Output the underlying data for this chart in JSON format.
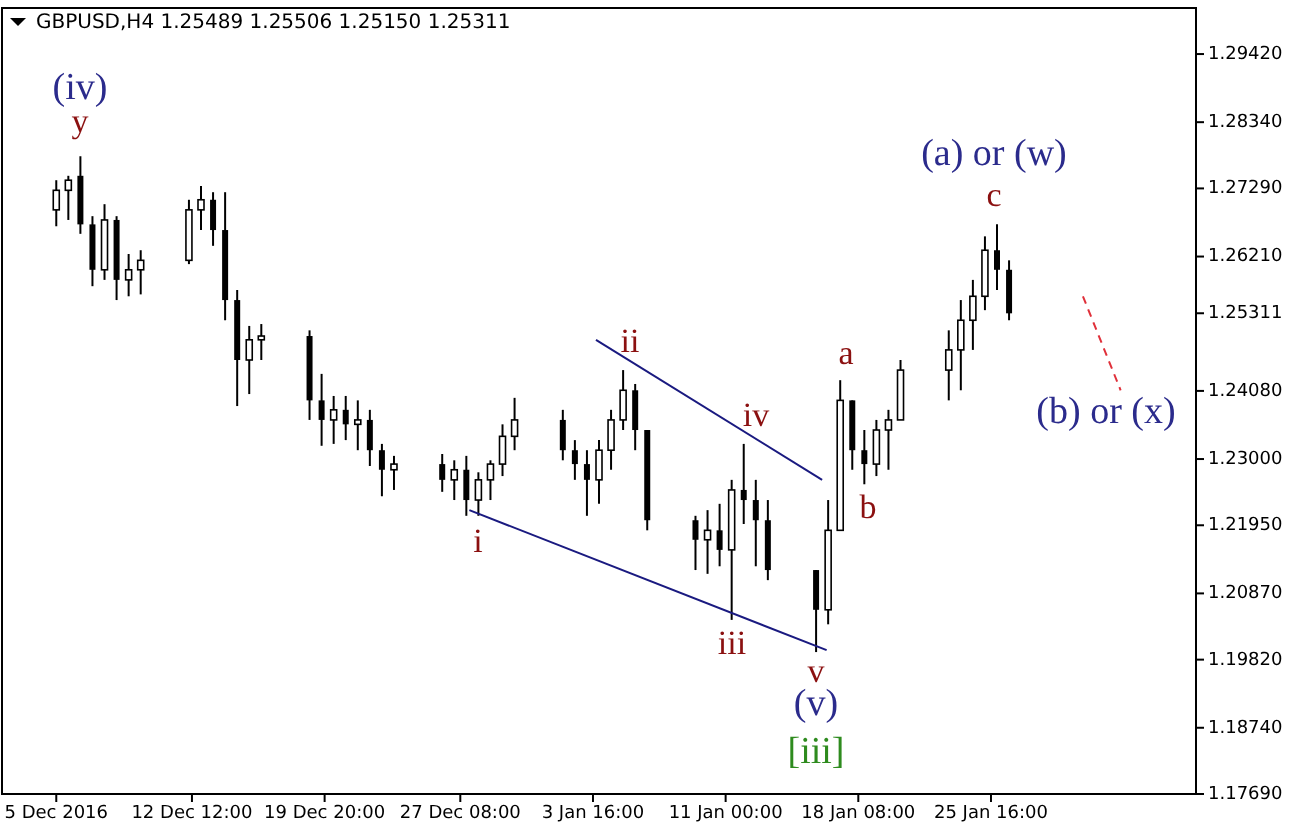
{
  "chart_data": {
    "type": "candlestick",
    "title": "GBPUSD,H4  1.25489 1.25506 1.25150 1.25311",
    "color": "#000000",
    "x": [
      "2016-12-05T00:00",
      "2016-12-05T16:00",
      "2016-12-06T08:00",
      "2016-12-07T00:00",
      "2016-12-07T16:00",
      "2016-12-08T08:00",
      "2016-12-09T00:00",
      "2016-12-09T16:00",
      "2016-12-12T08:00",
      "2016-12-13T00:00",
      "2016-12-13T16:00",
      "2016-12-14T08:00",
      "2016-12-15T00:00",
      "2016-12-15T16:00",
      "2016-12-16T08:00",
      "2016-12-19T00:00",
      "2016-12-19T16:00",
      "2016-12-20T08:00",
      "2016-12-21T00:00",
      "2016-12-21T16:00",
      "2016-12-22T08:00",
      "2016-12-23T00:00",
      "2016-12-23T16:00",
      "2016-12-26T08:00",
      "2016-12-27T00:00",
      "2016-12-27T16:00",
      "2016-12-28T08:00",
      "2016-12-29T00:00",
      "2016-12-29T16:00",
      "2016-12-30T08:00",
      "2017-01-02T00:00",
      "2017-01-02T16:00",
      "2017-01-03T08:00",
      "2017-01-04T00:00",
      "2017-01-04T16:00",
      "2017-01-05T08:00",
      "2017-01-06T00:00",
      "2017-01-06T16:00",
      "2017-01-09T08:00",
      "2017-01-10T00:00",
      "2017-01-10T16:00",
      "2017-01-11T08:00",
      "2017-01-12T00:00",
      "2017-01-12T16:00",
      "2017-01-13T08:00",
      "2017-01-16T00:00",
      "2017-01-16T16:00",
      "2017-01-17T08:00",
      "2017-01-18T00:00",
      "2017-01-18T16:00",
      "2017-01-19T08:00",
      "2017-01-20T00:00",
      "2017-01-20T16:00",
      "2017-01-23T08:00",
      "2017-01-24T00:00",
      "2017-01-24T16:00",
      "2017-01-25T08:00",
      "2017-01-26T00:00",
      "2017-01-26T16:00"
    ],
    "ohlc": [
      [
        1.2695,
        1.2742,
        1.2669,
        1.2726
      ],
      [
        1.2726,
        1.2749,
        1.2679,
        1.2742
      ],
      [
        1.2749,
        1.278,
        1.2657,
        1.2672
      ],
      [
        1.2672,
        1.2685,
        1.2574,
        1.26
      ],
      [
        1.26,
        1.2704,
        1.2584,
        1.2679
      ],
      [
        1.2679,
        1.2685,
        1.2552,
        1.2584
      ],
      [
        1.2584,
        1.2625,
        1.2558,
        1.26
      ],
      [
        1.26,
        1.2631,
        1.2561,
        1.2615
      ],
      [
        1.2615,
        1.2711,
        1.2609,
        1.2695
      ],
      [
        1.2695,
        1.2733,
        1.2663,
        1.2711
      ],
      [
        1.2711,
        1.2723,
        1.2638,
        1.2663
      ],
      [
        1.2663,
        1.2723,
        1.252,
        1.2552
      ],
      [
        1.2552,
        1.2568,
        1.2384,
        1.2457
      ],
      [
        1.2457,
        1.2511,
        1.2403,
        1.2489
      ],
      [
        1.2489,
        1.2514,
        1.2457,
        1.2495
      ],
      [
        1.2495,
        1.2504,
        1.2362,
        1.2393
      ],
      [
        1.2393,
        1.2435,
        1.2321,
        1.2362
      ],
      [
        1.2362,
        1.24,
        1.2324,
        1.2378
      ],
      [
        1.2378,
        1.24,
        1.233,
        1.2355
      ],
      [
        1.2355,
        1.2393,
        1.2314,
        1.2362
      ],
      [
        1.2362,
        1.2378,
        1.2289,
        1.2314
      ],
      [
        1.2314,
        1.2324,
        1.2241,
        1.2283
      ],
      [
        1.2283,
        1.2305,
        1.2251,
        1.2292
      ],
      [
        1.2292,
        1.2308,
        1.2248,
        1.2267
      ],
      [
        1.2267,
        1.2298,
        1.2235,
        1.2283
      ],
      [
        1.2283,
        1.2305,
        1.221,
        1.2235
      ],
      [
        1.2235,
        1.2279,
        1.221,
        1.2267
      ],
      [
        1.2267,
        1.2298,
        1.2235,
        1.2292
      ],
      [
        1.2292,
        1.2355,
        1.2273,
        1.2336
      ],
      [
        1.2336,
        1.2397,
        1.2314,
        1.2362
      ],
      [
        1.2362,
        1.2378,
        1.2298,
        1.2314
      ],
      [
        1.2314,
        1.233,
        1.2267,
        1.2292
      ],
      [
        1.2292,
        1.2314,
        1.221,
        1.2267
      ],
      [
        1.2267,
        1.233,
        1.2229,
        1.2314
      ],
      [
        1.2314,
        1.2378,
        1.2283,
        1.2362
      ],
      [
        1.2362,
        1.2441,
        1.2346,
        1.2409
      ],
      [
        1.2409,
        1.2419,
        1.2314,
        1.2346
      ],
      [
        1.2346,
        1.2346,
        1.2187,
        1.2203
      ],
      [
        1.2203,
        1.221,
        1.2124,
        1.2172
      ],
      [
        1.2172,
        1.2219,
        1.2118,
        1.2187
      ],
      [
        1.2187,
        1.2229,
        1.213,
        1.2156
      ],
      [
        1.2156,
        1.2267,
        1.2045,
        1.2251
      ],
      [
        1.2251,
        1.2324,
        1.2197,
        1.2235
      ],
      [
        1.2235,
        1.2267,
        1.213,
        1.2203
      ],
      [
        1.2203,
        1.2235,
        1.2108,
        1.2124
      ],
      [
        1.2124,
        1.2124,
        1.1994,
        1.2061
      ],
      [
        1.2061,
        1.2235,
        1.2038,
        1.2187
      ],
      [
        1.2187,
        1.2425,
        1.2187,
        1.2393
      ],
      [
        1.2393,
        1.2393,
        1.2283,
        1.2314
      ],
      [
        1.2314,
        1.2346,
        1.226,
        1.2292
      ],
      [
        1.2292,
        1.2362,
        1.2273,
        1.2346
      ],
      [
        1.2346,
        1.2378,
        1.2283,
        1.2362
      ],
      [
        1.2362,
        1.2457,
        1.2362,
        1.2441
      ],
      [
        1.2441,
        1.2504,
        1.2393,
        1.2473
      ],
      [
        1.2473,
        1.2552,
        1.2409,
        1.252
      ],
      [
        1.252,
        1.2584,
        1.2473,
        1.2558
      ],
      [
        1.2558,
        1.2653,
        1.2536,
        1.2631
      ],
      [
        1.2631,
        1.2672,
        1.2568,
        1.26
      ],
      [
        1.26,
        1.2615,
        1.252,
        1.2531
      ]
    ],
    "series": [
      {
        "type": "line",
        "color": "#1a1a80",
        "x": [
          "2017-01-03T20:00",
          "2017-01-16T08:00"
        ],
        "values": [
          1.2489,
          1.2267
        ]
      },
      {
        "type": "line",
        "color": "#1a1a80",
        "x": [
          "2016-12-27T20:00",
          "2017-01-16T14:00"
        ],
        "values": [
          1.2219,
          1.1997
        ]
      },
      {
        "type": "line",
        "color": "#e0303a",
        "line_style": "dashed",
        "x": [
          "2017-01-30T18:00",
          "2017-02-01T20:00"
        ],
        "values": [
          1.2558,
          1.2409
        ]
      }
    ],
    "annotations": [
      "(iv)",
      "y",
      "i",
      "ii",
      "iii",
      "iv",
      "v",
      "(v)",
      "[iii]",
      "a",
      "b",
      "c",
      "(a) or (w)",
      "(b) or (x)"
    ],
    "xlim": [
      "2016-12-02T00:00",
      "2017-02-06T00:00"
    ],
    "xticks": [
      {
        "value": "2016-12-05",
        "label": "5 Dec 2016"
      },
      {
        "value": "2016-12-12T12:00",
        "label": "12 Dec 12:00"
      },
      {
        "value": "2016-12-19T20:00",
        "label": "19 Dec 20:00"
      },
      {
        "value": "2016-12-27T08:00",
        "label": "27 Dec 08:00"
      },
      {
        "value": "2017-01-03T16:00",
        "label": "3 Jan 16:00"
      },
      {
        "value": "2017-01-11T00:00",
        "label": "11 Jan 00:00"
      },
      {
        "value": "2017-01-18T08:00",
        "label": "18 Jan 08:00"
      },
      {
        "value": "2017-01-25T16:00",
        "label": "25 Jan 16:00"
      }
    ],
    "ylim": [
      1.1769,
      1.3015
    ],
    "yticks": [
      {
        "value": 1.1769,
        "label": "1.17690"
      },
      {
        "value": 1.1874,
        "label": "1.18740"
      },
      {
        "value": 1.1982,
        "label": "1.19820"
      },
      {
        "value": 1.2087,
        "label": "1.20870"
      },
      {
        "value": 1.2195,
        "label": "1.21950"
      },
      {
        "value": 1.23,
        "label": "1.23000"
      },
      {
        "value": 1.2408,
        "label": "1.24080"
      },
      {
        "value": 1.25311,
        "label": "1.25311"
      },
      {
        "value": 1.2621,
        "label": "1.26210"
      },
      {
        "value": 1.2729,
        "label": "1.27290"
      },
      {
        "value": 1.2834,
        "label": "1.28340"
      },
      {
        "value": 1.2942,
        "label": "1.29420"
      }
    ]
  }
}
